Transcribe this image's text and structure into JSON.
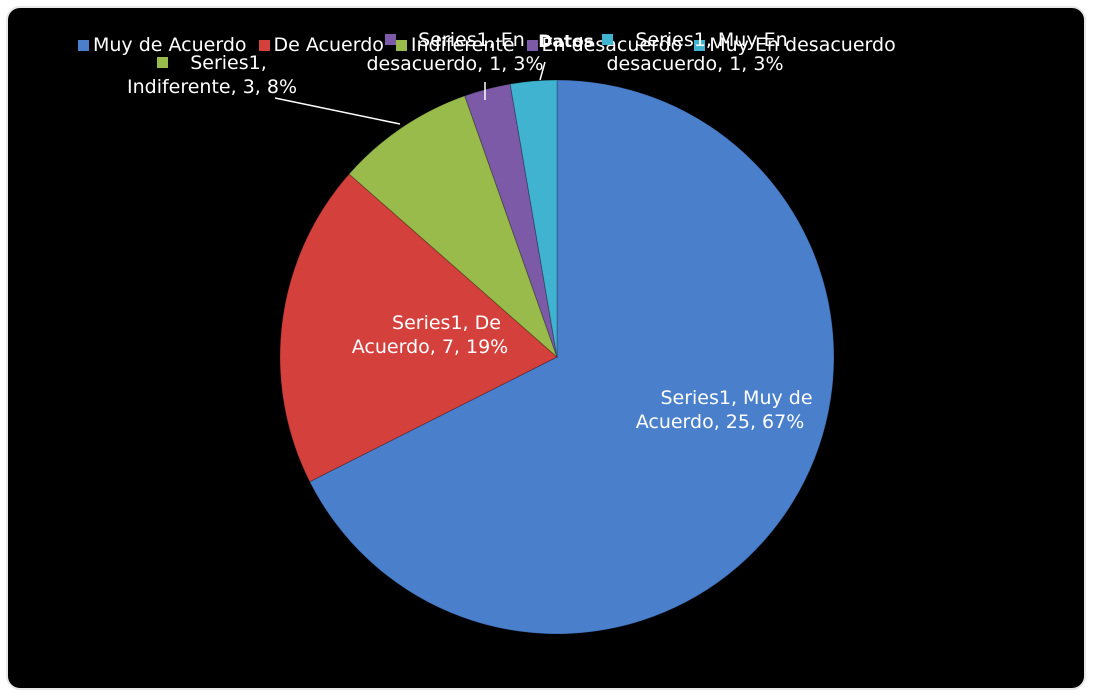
{
  "chart_data": {
    "type": "pie",
    "title": "Datos",
    "categories": [
      "Muy de Acuerdo",
      "De Acuerdo",
      "Indiferente",
      "En desacuerdo",
      "Muy En desacuerdo"
    ],
    "values": [
      25,
      7,
      3,
      1,
      1
    ],
    "value_labels": [
      "Series1, Muy de Acuerdo, 25, 67%",
      "Series1, De Acuerdo, 7, 19%",
      "Series1, Indiferente, 3, 8%",
      "Series1, En desacuerdo, 1, 3%",
      "Series1, Muy En desacuerdo, 1, 3%"
    ],
    "colors": [
      "#4a7fcc",
      "#d4413d",
      "#98bb4c",
      "#7c5aa8",
      "#3fb3d0"
    ],
    "legend": "top"
  }
}
